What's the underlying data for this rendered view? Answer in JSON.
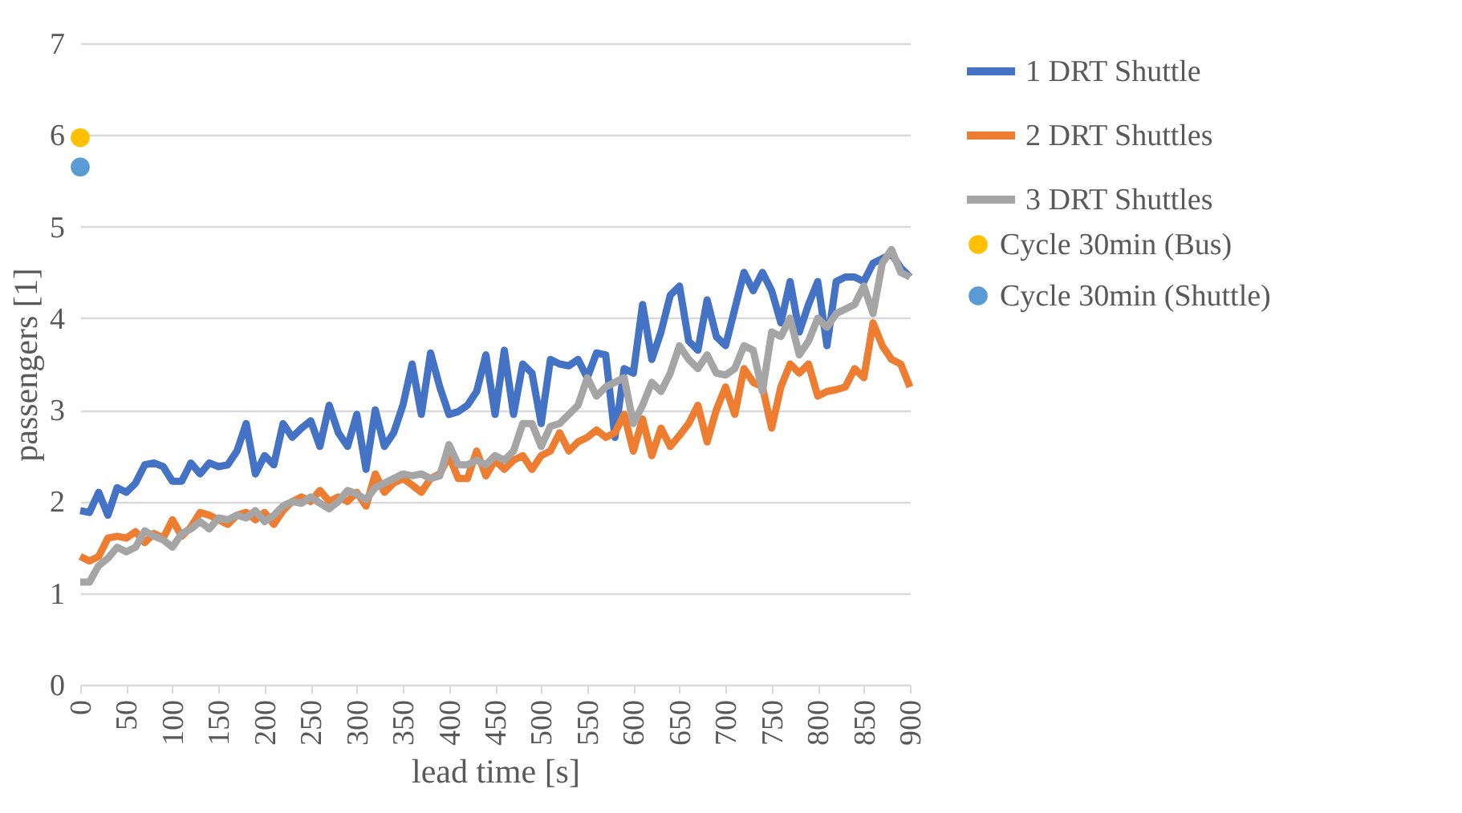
{
  "chart_data": {
    "type": "line",
    "xlabel": "lead time [s]",
    "ylabel": "passengers [1]",
    "x": [
      0,
      10,
      20,
      30,
      40,
      50,
      60,
      70,
      80,
      90,
      100,
      110,
      120,
      130,
      140,
      150,
      160,
      170,
      180,
      190,
      200,
      210,
      220,
      230,
      240,
      250,
      260,
      270,
      280,
      290,
      300,
      310,
      320,
      330,
      340,
      350,
      360,
      370,
      380,
      390,
      400,
      410,
      420,
      430,
      440,
      450,
      460,
      470,
      480,
      490,
      500,
      510,
      520,
      530,
      540,
      550,
      560,
      570,
      580,
      590,
      600,
      610,
      620,
      630,
      640,
      650,
      660,
      670,
      680,
      690,
      700,
      710,
      720,
      730,
      740,
      750,
      760,
      770,
      780,
      790,
      800,
      810,
      820,
      830,
      840,
      850,
      860,
      870,
      880,
      890,
      900
    ],
    "xlim": [
      0,
      900
    ],
    "xticks": [
      0,
      50,
      100,
      150,
      200,
      250,
      300,
      350,
      400,
      450,
      500,
      550,
      600,
      650,
      700,
      750,
      800,
      850,
      900
    ],
    "ylim": [
      0,
      7
    ],
    "yticks": [
      0,
      1,
      2,
      3,
      4,
      5,
      6,
      7
    ],
    "grid": "y",
    "legend": "right",
    "marker": "none",
    "line_style": "solid",
    "series": [
      {
        "name": "1 DRT Shuttle",
        "type": "line",
        "color": "#4472c4",
        "values": [
          1.9,
          1.88,
          2.1,
          1.85,
          2.15,
          2.1,
          2.2,
          2.4,
          2.42,
          2.38,
          2.22,
          2.22,
          2.42,
          2.3,
          2.42,
          2.38,
          2.4,
          2.55,
          2.85,
          2.3,
          2.5,
          2.4,
          2.85,
          2.7,
          2.8,
          2.88,
          2.6,
          3.05,
          2.75,
          2.6,
          2.95,
          2.35,
          3.0,
          2.6,
          2.75,
          3.05,
          3.5,
          2.95,
          3.62,
          3.25,
          2.95,
          2.98,
          3.05,
          3.2,
          3.6,
          2.95,
          3.65,
          2.95,
          3.5,
          3.4,
          2.85,
          3.55,
          3.5,
          3.48,
          3.55,
          3.35,
          3.62,
          3.6,
          2.7,
          3.45,
          3.4,
          4.15,
          3.55,
          3.85,
          4.25,
          4.35,
          3.75,
          3.65,
          4.2,
          3.8,
          3.7,
          4.1,
          4.5,
          4.3,
          4.5,
          4.3,
          3.95,
          4.4,
          3.85,
          4.15,
          4.4,
          3.7,
          4.4,
          4.45,
          4.45,
          4.4,
          4.6,
          4.65,
          4.7,
          4.55,
          4.45
        ]
      },
      {
        "name": "2 DRT Shuttles",
        "type": "line",
        "color": "#ed7d31",
        "values": [
          1.4,
          1.35,
          1.4,
          1.6,
          1.62,
          1.6,
          1.67,
          1.55,
          1.65,
          1.6,
          1.8,
          1.62,
          1.72,
          1.88,
          1.85,
          1.8,
          1.75,
          1.85,
          1.88,
          1.8,
          1.88,
          1.75,
          1.9,
          2.0,
          2.05,
          2.0,
          2.12,
          2.0,
          2.05,
          2.0,
          2.1,
          1.95,
          2.3,
          2.1,
          2.2,
          2.25,
          2.18,
          2.1,
          2.25,
          2.3,
          2.5,
          2.25,
          2.25,
          2.55,
          2.28,
          2.45,
          2.35,
          2.45,
          2.5,
          2.35,
          2.5,
          2.55,
          2.75,
          2.55,
          2.65,
          2.7,
          2.78,
          2.7,
          2.75,
          2.95,
          2.55,
          2.9,
          2.5,
          2.8,
          2.6,
          2.72,
          2.85,
          3.05,
          2.65,
          3.0,
          3.25,
          2.95,
          3.45,
          3.3,
          3.25,
          2.8,
          3.25,
          3.5,
          3.4,
          3.5,
          3.15,
          3.2,
          3.22,
          3.25,
          3.45,
          3.35,
          3.95,
          3.7,
          3.55,
          3.5,
          3.25
        ]
      },
      {
        "name": "3 DRT Shuttles",
        "type": "line",
        "color": "#a5a5a5",
        "values": [
          1.12,
          1.12,
          1.3,
          1.38,
          1.5,
          1.45,
          1.5,
          1.68,
          1.62,
          1.58,
          1.5,
          1.65,
          1.7,
          1.78,
          1.7,
          1.82,
          1.8,
          1.85,
          1.82,
          1.9,
          1.78,
          1.85,
          1.95,
          2.0,
          1.98,
          2.05,
          1.98,
          1.92,
          2.0,
          2.12,
          2.08,
          2.02,
          2.15,
          2.2,
          2.25,
          2.3,
          2.28,
          2.3,
          2.25,
          2.28,
          2.62,
          2.4,
          2.4,
          2.45,
          2.4,
          2.5,
          2.45,
          2.55,
          2.85,
          2.85,
          2.6,
          2.82,
          2.85,
          2.95,
          3.05,
          3.35,
          3.15,
          3.25,
          3.3,
          3.35,
          2.85,
          3.05,
          3.3,
          3.2,
          3.4,
          3.7,
          3.55,
          3.45,
          3.6,
          3.4,
          3.38,
          3.45,
          3.7,
          3.65,
          3.2,
          3.85,
          3.8,
          4.0,
          3.6,
          3.75,
          4.0,
          3.9,
          4.05,
          4.1,
          4.15,
          4.35,
          4.05,
          4.6,
          4.75,
          4.5,
          4.45
        ]
      },
      {
        "name": "Cycle 30min (Bus)",
        "type": "scatter",
        "marker": "circle",
        "color": "#ffc000",
        "x": [
          0
        ],
        "values": [
          5.97
        ]
      },
      {
        "name": "Cycle 30min (Shuttle)",
        "type": "scatter",
        "marker": "circle",
        "color": "#5b9bd5",
        "x": [
          0
        ],
        "values": [
          5.65
        ]
      }
    ]
  }
}
